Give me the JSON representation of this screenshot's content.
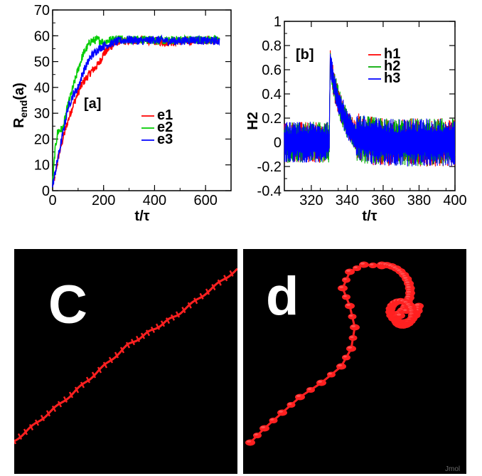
{
  "chart_data": [
    {
      "type": "line",
      "panel_label": "[a]",
      "xlabel": "t/τ",
      "ylabel": "R_end(a)",
      "xlim": [
        0,
        700
      ],
      "ylim": [
        0,
        70
      ],
      "x_ticks": [
        0,
        200,
        400,
        600
      ],
      "y_ticks": [
        0,
        10,
        20,
        30,
        40,
        50,
        60,
        70
      ],
      "tick_labels_x": [
        "0",
        "200",
        "400",
        "600"
      ],
      "tick_labels_y": [
        "0",
        "10",
        "20",
        "30",
        "40",
        "50",
        "60",
        "70"
      ],
      "grid": false,
      "legend_position": "middle-right",
      "series": [
        {
          "name": "e1",
          "color": "#ff0000",
          "x": [
            0,
            10,
            20,
            40,
            60,
            80,
            100,
            120,
            150,
            180,
            200,
            230,
            260,
            300,
            350,
            400,
            450,
            500,
            550,
            600,
            655
          ],
          "y": [
            2,
            6,
            12,
            20,
            27,
            33,
            38,
            42,
            46,
            49,
            53,
            56,
            58,
            58,
            58.5,
            58,
            57.5,
            58,
            58,
            58.5,
            58
          ]
        },
        {
          "name": "e2",
          "color": "#00cc00",
          "x": [
            0,
            10,
            20,
            40,
            60,
            80,
            100,
            120,
            150,
            180,
            200,
            230,
            260,
            300,
            350,
            400,
            450,
            500,
            550,
            600,
            655
          ],
          "y": [
            3,
            16,
            23,
            24,
            33,
            40,
            47,
            53,
            58,
            58.5,
            57.5,
            58.5,
            59,
            58.5,
            58.5,
            58.5,
            58,
            58.5,
            58.5,
            58.5,
            58.5
          ]
        },
        {
          "name": "e3",
          "color": "#0000ff",
          "x": [
            0,
            10,
            20,
            40,
            60,
            80,
            100,
            120,
            150,
            180,
            200,
            230,
            260,
            300,
            350,
            400,
            450,
            500,
            550,
            600,
            655
          ],
          "y": [
            2,
            7,
            12,
            22,
            32,
            37,
            40,
            46,
            52,
            55,
            56,
            57,
            58,
            58.5,
            58,
            58.5,
            58,
            58,
            58.5,
            58,
            58
          ]
        }
      ],
      "legend": [
        "e1",
        "e2",
        "e3"
      ]
    },
    {
      "type": "line",
      "panel_label": "[b]",
      "xlabel": "t/τ",
      "ylabel": "H2",
      "xlim": [
        305,
        400
      ],
      "ylim": [
        -0.4,
        1
      ],
      "x_ticks": [
        320,
        340,
        360,
        380,
        400
      ],
      "y_ticks": [
        -0.4,
        -0.2,
        0,
        0.2,
        0.4,
        0.6,
        0.8,
        1
      ],
      "tick_labels_x": [
        "320",
        "340",
        "360",
        "380",
        "400"
      ],
      "tick_labels_y": [
        "-0.4",
        "-0.2",
        "0",
        "0.2",
        "0.4",
        "0.6",
        "0.8",
        "1"
      ],
      "grid": false,
      "legend_position": "top-right",
      "series": [
        {
          "name": "h1",
          "color": "#ff0000",
          "x": [
            305,
            330,
            330.5,
            331,
            333,
            336,
            340,
            345,
            350,
            360,
            380,
            400
          ],
          "y_center": [
            0,
            0,
            0.72,
            0.6,
            0.45,
            0.3,
            0.15,
            0.05,
            0.02,
            0,
            0,
            0
          ],
          "y_range_min": -0.3,
          "y_range_max": 0.76
        },
        {
          "name": "h2",
          "color": "#00aa00",
          "x": [
            305,
            330,
            330.5,
            331,
            333,
            336,
            340,
            345,
            350,
            360,
            380,
            400
          ],
          "y_center": [
            0,
            0,
            0.7,
            0.6,
            0.45,
            0.3,
            0.15,
            0.05,
            0.02,
            0,
            0,
            0
          ],
          "y_range_min": -0.3,
          "y_range_max": 0.74
        },
        {
          "name": "h3",
          "color": "#0000ff",
          "x": [
            305,
            330,
            330.5,
            331,
            333,
            336,
            340,
            345,
            350,
            360,
            380,
            400
          ],
          "y_center": [
            0,
            0,
            0.7,
            0.6,
            0.45,
            0.3,
            0.15,
            0.05,
            0.02,
            0,
            0,
            0
          ],
          "y_range_min": -0.28,
          "y_range_max": 0.73
        }
      ],
      "legend": [
        "h1",
        "h2",
        "h3"
      ]
    }
  ],
  "images": {
    "c": {
      "label": "C",
      "bead_color": "#ff2020",
      "description_shape": "nearly straight diagonal chain"
    },
    "d": {
      "label": "d",
      "bead_color": "#ff2020",
      "description_shape": "chain curling into helix",
      "watermark": "Jmol"
    }
  }
}
